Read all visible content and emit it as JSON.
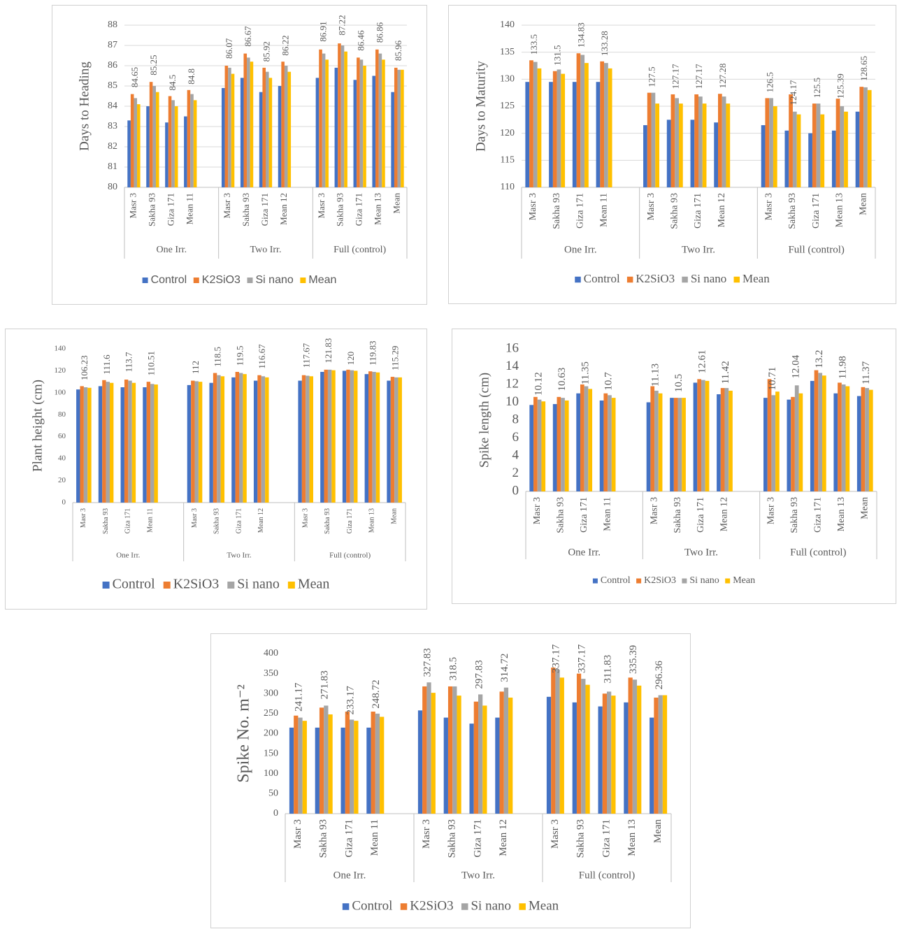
{
  "chart_data": [
    {
      "type": "bar",
      "y_label": "Days to Heading",
      "ylim": [
        80,
        88
      ],
      "yticks": [
        80,
        81,
        82,
        83,
        84,
        85,
        86,
        87,
        88
      ],
      "grid": true,
      "groups": [
        {
          "name": "One Irr.",
          "size": 4
        },
        {
          "name": "Two Irr.",
          "size": 4
        },
        {
          "name": "Full (control)",
          "size": 5
        }
      ],
      "categories": [
        "Masr 3",
        "Sakha 93",
        "Giza 171",
        "Mean 11",
        "Masr 3",
        "Sakha 93",
        "Giza 171",
        "Mean 12",
        "Masr 3",
        "Sakha 93",
        "Giza 171",
        "Mean 13",
        "Mean"
      ],
      "data_labels": [
        84.65,
        85.25,
        84.5,
        84.8,
        86.07,
        86.67,
        85.92,
        86.22,
        86.91,
        87.22,
        86.46,
        86.86,
        85.96
      ],
      "series": [
        {
          "name": "Control",
          "color": "#4472c4",
          "values": [
            83.3,
            84.0,
            83.2,
            83.5,
            84.9,
            85.4,
            84.7,
            85.0,
            85.4,
            85.9,
            85.3,
            85.5,
            84.7
          ]
        },
        {
          "name": "K2SiO3",
          "color": "#ed7d31",
          "values": [
            84.6,
            85.2,
            84.5,
            84.8,
            86.0,
            86.6,
            85.9,
            86.2,
            86.8,
            87.1,
            86.4,
            86.8,
            85.9
          ]
        },
        {
          "name": "Si nano",
          "color": "#a5a5a5",
          "values": [
            84.4,
            85.0,
            84.3,
            84.6,
            85.9,
            86.4,
            85.7,
            86.0,
            86.6,
            87.0,
            86.3,
            86.6,
            85.8
          ]
        },
        {
          "name": "Mean",
          "color": "#ffc000",
          "values": [
            84.1,
            84.7,
            84.0,
            84.3,
            85.6,
            86.2,
            85.4,
            85.7,
            86.3,
            86.7,
            86.0,
            86.3,
            85.8
          ]
        }
      ]
    },
    {
      "type": "bar",
      "y_label": "Days to Maturity",
      "ylim": [
        110,
        140
      ],
      "yticks": [
        110,
        115,
        120,
        125,
        130,
        135,
        140
      ],
      "grid": true,
      "groups": [
        {
          "name": "One Irr.",
          "size": 4
        },
        {
          "name": "Two Irr.",
          "size": 4
        },
        {
          "name": "Full (control)",
          "size": 5
        }
      ],
      "categories": [
        "Masr 3",
        "Sakha 93",
        "Giza 171",
        "Mean 11",
        "Masr 3",
        "Sakha 93",
        "Giza 171",
        "Mean 12",
        "Masr 3",
        "Sakha 93",
        "Giza 171",
        "Mean 13",
        "Mean"
      ],
      "data_labels": [
        133.5,
        131.5,
        134.83,
        133.28,
        127.5,
        127.17,
        127.17,
        127.28,
        126.5,
        124.17,
        125.5,
        125.39,
        128.65
      ],
      "series": [
        {
          "name": "Control",
          "color": "#4472c4",
          "values": [
            129.5,
            129.5,
            129.5,
            129.5,
            121.5,
            122.5,
            122.5,
            122,
            121.5,
            120.5,
            120,
            120.5,
            124
          ]
        },
        {
          "name": "K2SiO3",
          "color": "#ed7d31",
          "values": [
            133.5,
            131.5,
            134.8,
            133.3,
            127.5,
            127.2,
            127.2,
            127.3,
            126.5,
            127.2,
            125.5,
            126.4,
            128.6
          ]
        },
        {
          "name": "Si nano",
          "color": "#a5a5a5",
          "values": [
            133.2,
            131.8,
            134.5,
            133,
            127.5,
            126.5,
            126.8,
            126.8,
            126.5,
            124,
            125.5,
            125,
            128.5
          ]
        },
        {
          "name": "Mean",
          "color": "#ffc000",
          "values": [
            132,
            131,
            133,
            132,
            125.5,
            125.5,
            125.5,
            125.5,
            125,
            123.5,
            123.5,
            124,
            128
          ]
        }
      ]
    },
    {
      "type": "bar",
      "y_label": "Plant height (cm)",
      "ylim": [
        0,
        140
      ],
      "yticks": [
        0,
        20,
        40,
        60,
        80,
        100,
        120,
        140
      ],
      "grid": false,
      "groups": [
        {
          "name": "One Irr.",
          "size": 4
        },
        {
          "name": "Two Irr.",
          "size": 4
        },
        {
          "name": "Full (control)",
          "size": 5
        }
      ],
      "categories": [
        "Masr 3",
        "Sakha 93",
        "Giza 171",
        "Mean 11",
        "Masr 3",
        "Sakha 93",
        "Giza 171",
        "Mean 12",
        "Masr 3",
        "Sakha 93",
        "Giza 171",
        "Mean 13",
        "Mean"
      ],
      "data_labels": [
        106.23,
        111.6,
        113.7,
        110.51,
        112,
        118.5,
        119.5,
        116.67,
        117.67,
        121.83,
        120,
        119.83,
        115.29
      ],
      "series": [
        {
          "name": "Control",
          "color": "#4472c4",
          "values": [
            103,
            106,
            105,
            105,
            107,
            109,
            114,
            111,
            111,
            119,
            120,
            117,
            111
          ]
        },
        {
          "name": "K2SiO3",
          "color": "#ed7d31",
          "values": [
            106,
            111.5,
            112,
            110,
            111,
            118,
            119,
            116,
            116,
            121,
            121,
            119.5,
            114.5
          ]
        },
        {
          "name": "Si nano",
          "color": "#a5a5a5",
          "values": [
            105,
            110,
            111,
            108,
            110.5,
            116,
            118,
            115,
            115.5,
            121,
            120.5,
            119,
            114
          ]
        },
        {
          "name": "Mean",
          "color": "#ffc000",
          "values": [
            104.5,
            109,
            109,
            107.5,
            110,
            115,
            117,
            114,
            115,
            120.5,
            120,
            118.5,
            114
          ]
        }
      ]
    },
    {
      "type": "bar",
      "y_label": "Spike length (cm)",
      "ylim": [
        0,
        16
      ],
      "yticks": [
        0,
        2,
        4,
        6,
        8,
        10,
        12,
        14,
        16
      ],
      "grid": false,
      "groups": [
        {
          "name": "One Irr.",
          "size": 4
        },
        {
          "name": "Two Irr.",
          "size": 4
        },
        {
          "name": "Full (control)",
          "size": 5
        }
      ],
      "categories": [
        "Masr 3",
        "Sakha 93",
        "Giza 171",
        "Mean 11",
        "Masr 3",
        "Sakha 93",
        "Giza 171",
        "Mean 12",
        "Masr 3",
        "Sakha 93",
        "Giza 171",
        "Mean 13",
        "Mean"
      ],
      "data_labels": [
        10.12,
        10.63,
        11.35,
        10.7,
        11.13,
        10.5,
        12.61,
        11.42,
        10.71,
        12.04,
        13.2,
        11.98,
        11.37
      ],
      "series": [
        {
          "name": "Control",
          "color": "#4472c4",
          "values": [
            9.7,
            9.8,
            11.0,
            10.2,
            10.0,
            10.5,
            12.2,
            10.9,
            10.5,
            10.3,
            12.4,
            11.0,
            10.7
          ]
        },
        {
          "name": "K2SiO3",
          "color": "#ed7d31",
          "values": [
            10.6,
            10.6,
            12.0,
            11.0,
            11.8,
            10.5,
            12.6,
            11.6,
            12.6,
            10.6,
            13.6,
            12.2,
            11.7
          ]
        },
        {
          "name": "Si nano",
          "color": "#a5a5a5",
          "values": [
            10.3,
            10.5,
            11.8,
            10.8,
            11.3,
            10.5,
            12.5,
            11.6,
            10.8,
            11.9,
            13.3,
            12.0,
            11.6
          ]
        },
        {
          "name": "Mean",
          "color": "#ffc000",
          "values": [
            10.1,
            10.2,
            11.5,
            10.5,
            11.0,
            10.5,
            12.4,
            11.3,
            11.2,
            11.0,
            13.0,
            11.8,
            11.4
          ]
        }
      ]
    },
    {
      "type": "bar",
      "y_label": "Spike No. m⁻²",
      "ylim": [
        0,
        400
      ],
      "yticks": [
        0,
        50,
        100,
        150,
        200,
        250,
        300,
        350,
        400
      ],
      "grid": false,
      "groups": [
        {
          "name": "One Irr.",
          "size": 4
        },
        {
          "name": "Two Irr.",
          "size": 4
        },
        {
          "name": "Full (control)",
          "size": 5
        }
      ],
      "categories": [
        "Masr 3",
        "Sakha 93",
        "Giza 171",
        "Mean 11",
        "Masr 3",
        "Sakha 93",
        "Giza 171",
        "Mean 12",
        "Masr 3",
        "Sakha 93",
        "Giza 171",
        "Mean 13",
        "Mean"
      ],
      "data_labels": [
        241.17,
        271.83,
        233.17,
        248.72,
        327.83,
        318.5,
        297.83,
        314.72,
        337.17,
        337.17,
        311.83,
        335.39,
        296.36
      ],
      "series": [
        {
          "name": "Control",
          "color": "#4472c4",
          "values": [
            215,
            215,
            215,
            215,
            258,
            240,
            225,
            240,
            292,
            278,
            268,
            278,
            240
          ]
        },
        {
          "name": "K2SiO3",
          "color": "#ed7d31",
          "values": [
            245,
            265,
            255,
            255,
            318,
            318,
            280,
            305,
            365,
            350,
            300,
            340,
            290
          ]
        },
        {
          "name": "Si nano",
          "color": "#a5a5a5",
          "values": [
            240,
            270,
            235,
            250,
            328,
            318,
            298,
            315,
            360,
            337,
            305,
            335,
            296
          ]
        },
        {
          "name": "Mean",
          "color": "#ffc000",
          "values": [
            232,
            248,
            232,
            242,
            302,
            295,
            270,
            290,
            340,
            322,
            295,
            320,
            296
          ]
        }
      ]
    }
  ]
}
